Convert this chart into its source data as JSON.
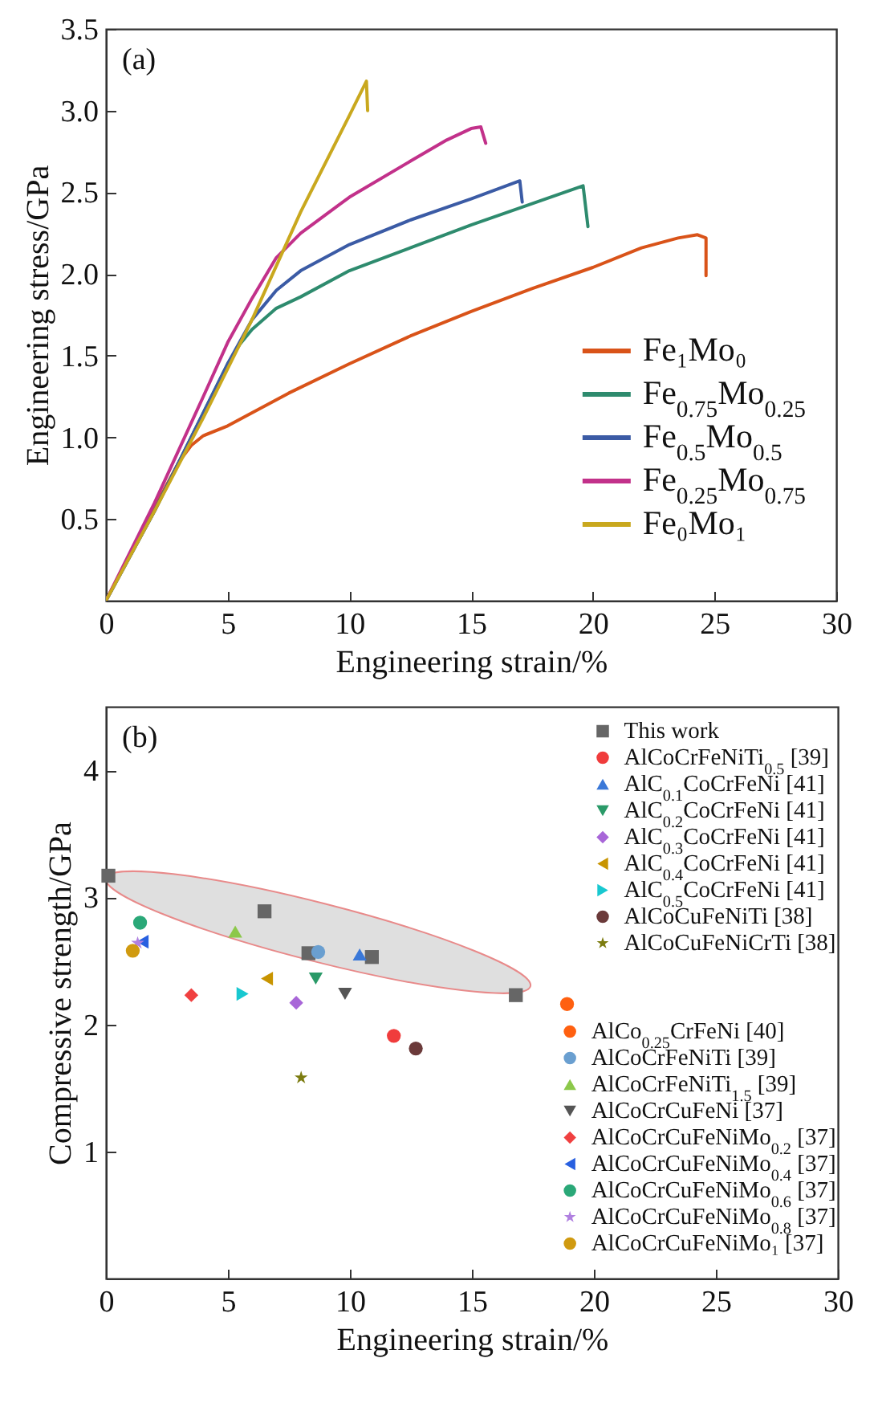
{
  "chart_data": [
    {
      "type": "line",
      "annotations": [
        "(a)"
      ],
      "xlabel": "Engineering strain/%",
      "ylabel": "Engineering stress/GPa",
      "xlim": [
        0,
        30
      ],
      "xticks": [
        0,
        5,
        10,
        15,
        20,
        25,
        30
      ],
      "ylim": [
        0,
        3.5
      ],
      "yticks": [
        {
          "value": 0.5,
          "label": "0.5"
        },
        {
          "value": 1,
          "label": "1.0"
        },
        {
          "value": 1.5,
          "label": "1.5"
        },
        {
          "value": 2,
          "label": "2.0"
        },
        {
          "value": 2.5,
          "label": "2.5"
        },
        {
          "value": 3,
          "label": "3.0"
        },
        {
          "value": 3.5,
          "label": "3.5"
        }
      ],
      "legend": "bottom right",
      "line_style": "solid",
      "series": [
        {
          "name": "Fe₁Mo₀",
          "color": "#d95319",
          "x": [
            0,
            1,
            2,
            3,
            3.5,
            4,
            5,
            7.5,
            10,
            12.5,
            15,
            17.5,
            20,
            22,
            23.5,
            24.3,
            24.65,
            24.65
          ],
          "values": [
            0,
            0.29,
            0.57,
            0.85,
            0.95,
            1.01,
            1.07,
            1.27,
            1.45,
            1.62,
            1.77,
            1.91,
            2.04,
            2.16,
            2.22,
            2.24,
            2.22,
            1.99
          ]
        },
        {
          "name": "Fe$_{0.75}$Mo$_{0.25}$",
          "color": "#2e8b6e",
          "x": [
            0,
            2,
            4,
            5,
            5.5,
            6,
            7,
            8,
            10,
            12.5,
            15,
            17.5,
            19.6,
            19.8
          ],
          "values": [
            0,
            0.55,
            1.15,
            1.45,
            1.57,
            1.66,
            1.79,
            1.86,
            2.02,
            2.16,
            2.3,
            2.43,
            2.54,
            2.29
          ]
        },
        {
          "name": "Fe$_{0.5}$Mo$_{0.5}$",
          "color": "#3b5ba5",
          "x": [
            0,
            2,
            4,
            5,
            6,
            7,
            8,
            10,
            12.5,
            15,
            17,
            17.1
          ],
          "values": [
            0,
            0.55,
            1.15,
            1.45,
            1.72,
            1.9,
            2.02,
            2.18,
            2.33,
            2.46,
            2.57,
            2.44
          ]
        },
        {
          "name": "Fe$_{0.25}$Mo$_{0.75}$",
          "color": "#c2318a",
          "x": [
            0,
            2,
            4,
            5,
            6,
            7,
            8,
            10,
            12.5,
            14,
            15,
            15.4,
            15.6
          ],
          "values": [
            0,
            0.6,
            1.25,
            1.58,
            1.85,
            2.1,
            2.25,
            2.47,
            2.69,
            2.82,
            2.89,
            2.9,
            2.8
          ]
        },
        {
          "name": "Fe₀Mo₁",
          "color": "#c9a81e",
          "x": [
            0,
            2,
            4,
            6,
            8,
            10,
            10.7,
            10.75
          ],
          "values": [
            0,
            0.55,
            1.12,
            1.72,
            2.38,
            2.97,
            3.18,
            3.0
          ]
        }
      ]
    },
    {
      "type": "scatter",
      "annotations": [
        "(b)"
      ],
      "xlabel": "Engineering strain/%",
      "ylabel": "Compressive strength/GPa",
      "xlim": [
        0,
        30
      ],
      "xticks": [
        0,
        5,
        10,
        15,
        20,
        25,
        30
      ],
      "ylim": [
        0,
        4.5
      ],
      "yticks": [
        1,
        2,
        3,
        4
      ],
      "legend": "right",
      "series": [
        {
          "name": "This work",
          "color": "#666666",
          "marker": "square",
          "x": [
            0.1,
            6.5,
            8.3,
            10.9,
            16.8
          ],
          "values": [
            3.17,
            2.89,
            2.56,
            2.53,
            2.23
          ]
        },
        {
          "name": "AlCoCrFeNiTi$_{0.5}$ [39]",
          "color": "#f03c3c",
          "marker": "circle",
          "x": [
            11.8
          ],
          "values": [
            1.91
          ]
        },
        {
          "name": "AlC$_{0.1}$CoCrFeNi [41]",
          "color": "#3a78d8",
          "marker": "triangle",
          "x": [
            10.4
          ],
          "values": [
            2.55
          ]
        },
        {
          "name": "AlC$_{0.2}$CoCrFeNi [41]",
          "color": "#2a9a68",
          "marker": "triangle-down",
          "x": [
            8.6
          ],
          "values": [
            2.36
          ]
        },
        {
          "name": "AlC$_{0.3}$CoCrFeNi [41]",
          "color": "#a866d8",
          "marker": "diamond",
          "x": [
            7.8
          ],
          "values": [
            2.17
          ]
        },
        {
          "name": "AlC$_{0.4}$CoCrFeNi [41]",
          "color": "#c89400",
          "marker": "triangle-left",
          "x": [
            6.6
          ],
          "values": [
            2.36
          ]
        },
        {
          "name": "AlC$_{0.5}$CoCrFeNi [41]",
          "color": "#18c8d0",
          "marker": "triangle-right",
          "x": [
            5.6
          ],
          "values": [
            2.24
          ]
        },
        {
          "name": "AlCoCuFeNiTi [38]",
          "color": "#6b3a3a",
          "x": [
            12.7
          ],
          "values": [
            1.81
          ]
        },
        {
          "name": "AlCoCuFeNiCrTi [38]",
          "color": "#7c7c10",
          "marker": "star",
          "x": [
            8.0
          ],
          "values": [
            1.58
          ]
        },
        {
          "name": "AlCo$_{0.25}$CrFeNi [40]",
          "color": "#ff6010",
          "x": [
            18.9
          ],
          "values": [
            2.16
          ]
        },
        {
          "name": "AlCoCrFeNiTi [39]",
          "color": "#6a9fd0",
          "marker": "circle",
          "x": [
            8.7
          ],
          "values": [
            2.57
          ]
        },
        {
          "name": "AlCoCrFeNiTi$_{1.5}$ [39]",
          "color": "#8cc84a",
          "marker": "triangle",
          "x": [
            5.3
          ],
          "values": [
            2.73
          ]
        },
        {
          "name": "AlCoCrCuFeNi [37]",
          "color": "#555555",
          "marker": "triangle-down",
          "x": [
            9.8
          ],
          "values": [
            2.24
          ]
        },
        {
          "name": "AlCoCrCuFeNiMo$_{0.2}$ [37]",
          "color": "#f04040",
          "marker": "diamond",
          "x": [
            3.5
          ],
          "values": [
            2.23
          ]
        },
        {
          "name": "AlCoCrCuFeNiMo$_{0.4}$ [37]",
          "color": "#2860e0",
          "marker": "triangle-left",
          "x": [
            1.5
          ],
          "values": [
            2.65
          ]
        },
        {
          "name": "AlCoCrCuFeNiMo$_{0.6}$ [37]",
          "color": "#2aa878",
          "marker": "circle",
          "x": [
            1.4
          ],
          "values": [
            2.8
          ]
        },
        {
          "name": "AlCoCrCuFeNiMo$_{0.8}$ [37]",
          "color": "#b080e0",
          "marker": "star",
          "x": [
            1.3
          ],
          "values": [
            2.64
          ]
        },
        {
          "name": "AlCoCrCuFeNiMo₁ [37]",
          "color": "#d09a10",
          "x": [
            1.1
          ],
          "values": [
            2.58
          ]
        }
      ]
    }
  ]
}
